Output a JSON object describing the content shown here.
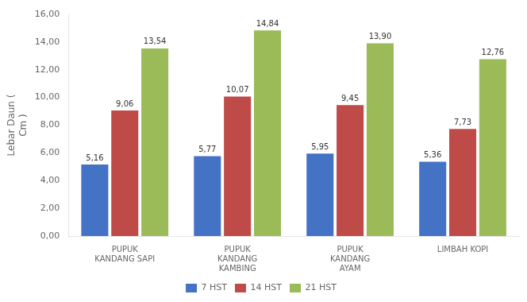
{
  "chart_data": {
    "type": "bar",
    "categories": [
      "PUPUK\nKANDANG SAPI",
      "PUPUK\nKANDANG\nKAMBING",
      "PUPUK\nKANDANG\nAYAM",
      "LIMBAH KOPI"
    ],
    "series": [
      {
        "name": "7 HST",
        "color": "#4472C4",
        "values": [
          5.16,
          5.77,
          5.95,
          5.36
        ],
        "value_labels": [
          "5,16",
          "5,77",
          "5,95",
          "5,36"
        ]
      },
      {
        "name": "14 HST",
        "color": "#BE4B48",
        "values": [
          9.06,
          10.07,
          9.45,
          7.73
        ],
        "value_labels": [
          "9,06",
          "10,07",
          "9,45",
          "7,73"
        ]
      },
      {
        "name": "21 HST",
        "color": "#9BBB59",
        "values": [
          13.54,
          14.84,
          13.9,
          12.76
        ],
        "value_labels": [
          "13,54",
          "14,84",
          "13,90",
          "12,76"
        ]
      }
    ],
    "ylabel": "Lebar Daun (\nCm )",
    "ylim": [
      0,
      16
    ],
    "yticks": [
      {
        "value": 0,
        "label": "0,00"
      },
      {
        "value": 2,
        "label": "2,00"
      },
      {
        "value": 4,
        "label": "4,00"
      },
      {
        "value": 6,
        "label": "6,00"
      },
      {
        "value": 8,
        "label": "8,00"
      },
      {
        "value": 10,
        "label": "10,00"
      },
      {
        "value": 12,
        "label": "12,00"
      },
      {
        "value": 14,
        "label": "14,00"
      },
      {
        "value": 16,
        "label": "16,00"
      }
    ],
    "grid": false,
    "legend": "bottom",
    "data_labels": true
  }
}
